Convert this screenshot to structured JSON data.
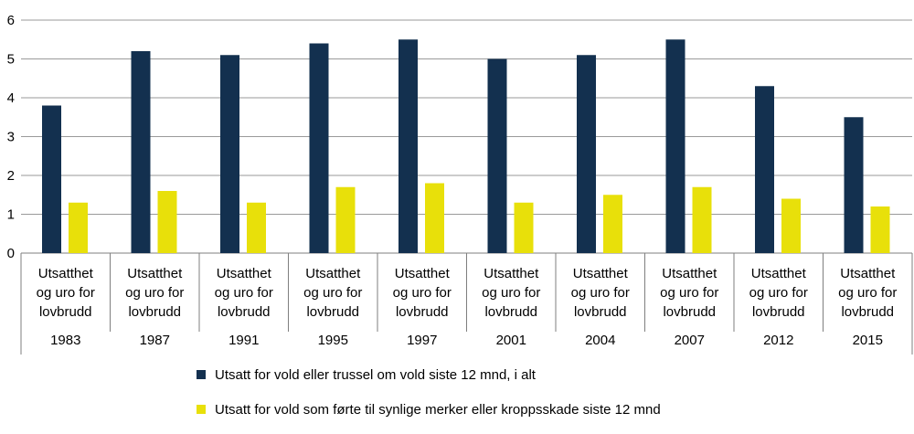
{
  "chart_data": {
    "type": "bar",
    "title": "",
    "xlabel": "",
    "ylabel": "",
    "ylim": [
      0,
      6
    ],
    "yticks": [
      0,
      1,
      2,
      3,
      4,
      5,
      6
    ],
    "grid": "horizontal",
    "legend_position": "bottom",
    "group_label": [
      "Utsatthet",
      "og uro for",
      "lovbrudd"
    ],
    "categories": [
      "1983",
      "1987",
      "1991",
      "1995",
      "1997",
      "2001",
      "2004",
      "2007",
      "2012",
      "2015"
    ],
    "series": [
      {
        "name": "Utsatt for vold eller trussel om vold siste 12 mnd, i alt",
        "color": "#13304f",
        "values": [
          3.8,
          5.2,
          5.1,
          5.4,
          5.5,
          5.0,
          5.1,
          5.5,
          4.3,
          3.5
        ]
      },
      {
        "name": "Utsatt for vold som førte til synlige merker eller kroppsskade siste 12 mnd",
        "color": "#e8e00a",
        "values": [
          1.3,
          1.6,
          1.3,
          1.7,
          1.8,
          1.3,
          1.5,
          1.7,
          1.4,
          1.2
        ]
      }
    ]
  }
}
